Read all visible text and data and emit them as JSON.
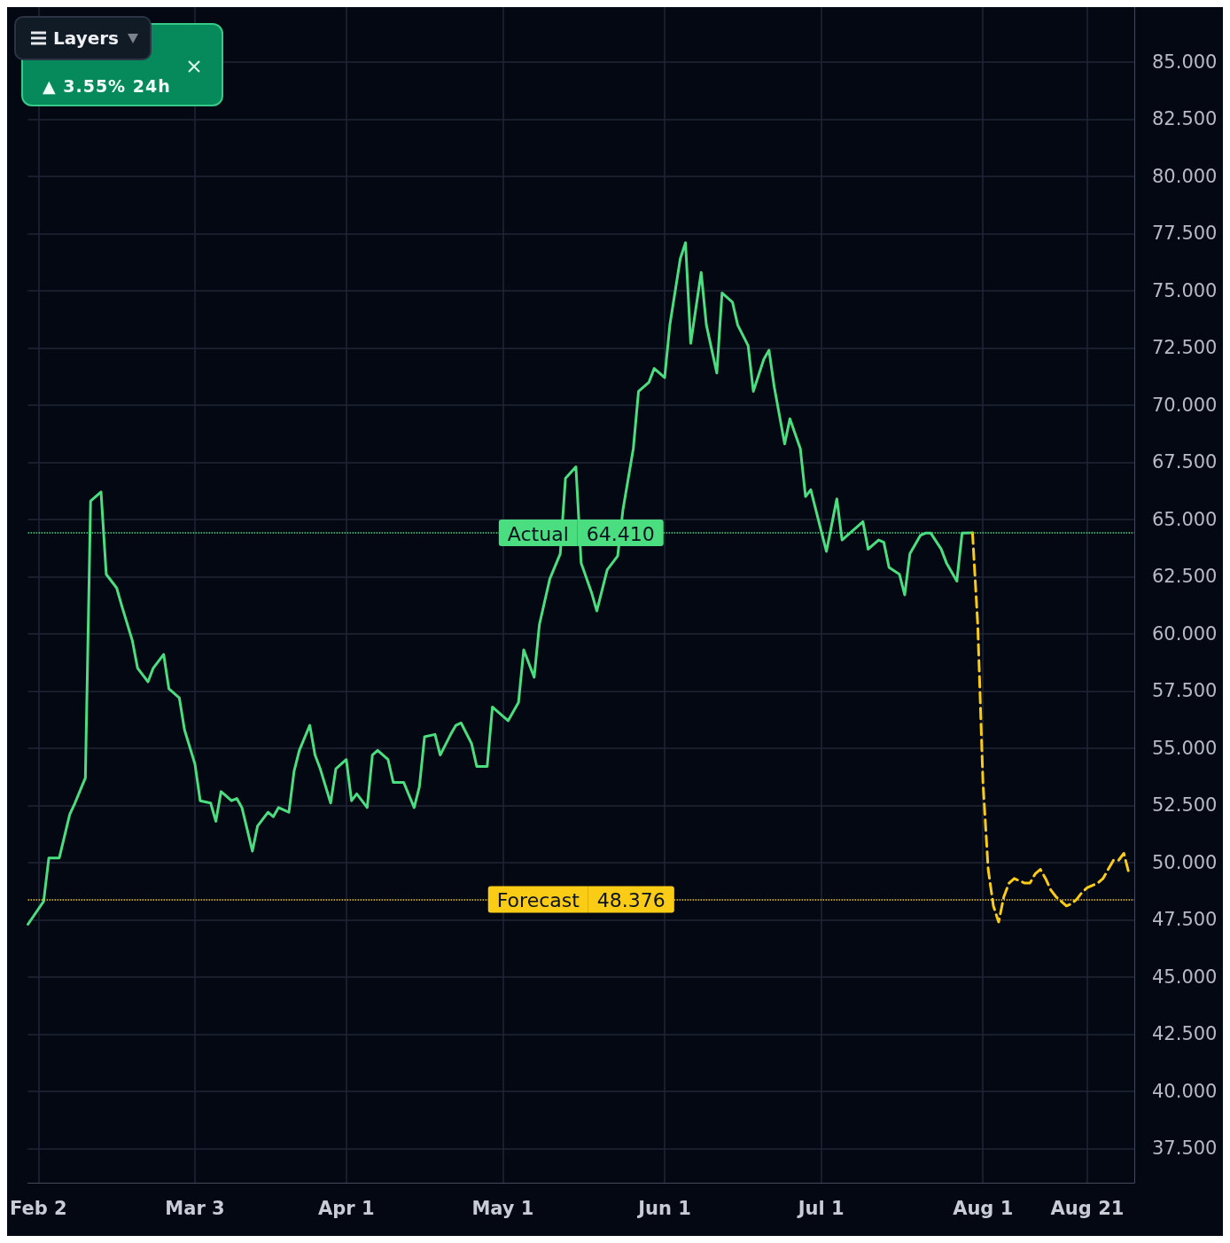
{
  "chart_data": {
    "type": "line",
    "xlim": [
      "--01-31",
      "--08-30"
    ],
    "xticks": [
      {
        "value": "--02-02",
        "label": "Feb 2"
      },
      {
        "value": "--03-03",
        "label": "Mar 3"
      },
      {
        "value": "--04-01",
        "label": "Apr 1"
      },
      {
        "value": "--05-01",
        "label": "May 1"
      },
      {
        "value": "--06-01",
        "label": "Jun 1"
      },
      {
        "value": "--07-01",
        "label": "Jul 1"
      },
      {
        "value": "--08-01",
        "label": "Aug 1"
      },
      {
        "value": "--08-21",
        "label": "Aug 21"
      }
    ],
    "ylim": [
      36,
      87.4
    ],
    "yticks": [
      {
        "value": 37.5,
        "label": "37.500"
      },
      {
        "value": 40,
        "label": "40.000"
      },
      {
        "value": 42.5,
        "label": "42.500"
      },
      {
        "value": 45,
        "label": "45.000"
      },
      {
        "value": 47.5,
        "label": "47.500"
      },
      {
        "value": 50,
        "label": "50.000"
      },
      {
        "value": 52.5,
        "label": "52.500"
      },
      {
        "value": 55,
        "label": "55.000"
      },
      {
        "value": 57.5,
        "label": "57.500"
      },
      {
        "value": 60,
        "label": "60.000"
      },
      {
        "value": 62.5,
        "label": "62.500"
      },
      {
        "value": 65,
        "label": "65.000"
      },
      {
        "value": 67.5,
        "label": "67.500"
      },
      {
        "value": 70,
        "label": "70.000"
      },
      {
        "value": 72.5,
        "label": "72.500"
      },
      {
        "value": 75,
        "label": "75.000"
      },
      {
        "value": 77.5,
        "label": "77.500"
      },
      {
        "value": 80,
        "label": "80.000"
      },
      {
        "value": 82.5,
        "label": "82.500"
      },
      {
        "value": 85,
        "label": "85.000"
      }
    ],
    "grid": true,
    "marker": "none",
    "series": [
      {
        "color": "#4ade80",
        "line_style": "solid",
        "x": [
          "--01-31",
          "--02-03",
          "--02-04",
          "--02-06",
          "--02-08",
          "--02-09",
          "--02-11",
          "--02-12",
          "--02-14",
          "--02-15",
          "--02-17",
          "--02-18",
          "--02-20",
          "--02-21",
          "--02-23",
          "--02-24",
          "--02-26",
          "--02-27",
          "--02-29",
          "--03-01",
          "--03-03",
          "--03-04",
          "--03-06",
          "--03-07",
          "--03-08",
          "--03-10",
          "--03-11",
          "--03-12",
          "--03-14",
          "--03-15",
          "--03-17",
          "--03-18",
          "--03-19",
          "--03-21",
          "--03-22",
          "--03-23",
          "--03-25",
          "--03-26",
          "--03-27",
          "--03-29",
          "--03-30",
          "--04-01",
          "--04-02",
          "--04-03",
          "--04-05",
          "--04-06",
          "--04-07",
          "--04-09",
          "--04-10",
          "--04-12",
          "--04-14",
          "--04-15",
          "--04-16",
          "--04-18",
          "--04-19",
          "--04-21",
          "--04-22",
          "--04-23",
          "--04-25",
          "--04-26",
          "--04-28",
          "--04-29",
          "--04-30",
          "--05-02",
          "--05-04",
          "--05-05",
          "--05-07",
          "--05-08",
          "--05-10",
          "--05-12",
          "--05-13",
          "--05-15",
          "--05-16",
          "--05-18",
          "--05-19",
          "--05-21",
          "--05-23",
          "--05-24",
          "--05-26",
          "--05-27",
          "--05-29",
          "--05-30",
          "--06-01",
          "--06-02",
          "--06-04",
          "--06-05",
          "--06-06",
          "--06-08",
          "--06-09",
          "--06-11",
          "--06-12",
          "--06-14",
          "--06-15",
          "--06-17",
          "--06-18",
          "--06-20",
          "--06-21",
          "--06-22",
          "--06-24",
          "--06-25",
          "--06-27",
          "--06-28",
          "--06-29",
          "--07-01",
          "--07-02",
          "--07-04",
          "--07-05",
          "--07-06",
          "--07-08",
          "--07-09",
          "--07-10",
          "--07-12",
          "--07-13",
          "--07-14",
          "--07-16",
          "--07-17",
          "--07-18",
          "--07-20",
          "--07-21",
          "--07-22",
          "--07-24",
          "--07-25",
          "--07-27",
          "--07-28",
          "--07-30"
        ],
        "values": [
          47.3,
          48.3,
          50.2,
          50.2,
          52.1,
          52.6,
          53.7,
          65.8,
          66.2,
          62.6,
          62.0,
          61.2,
          59.7,
          58.5,
          57.9,
          58.5,
          59.1,
          57.6,
          57.2,
          55.8,
          54.3,
          52.7,
          52.6,
          51.8,
          53.1,
          52.7,
          52.8,
          52.4,
          50.5,
          51.6,
          52.2,
          52.0,
          52.4,
          52.2,
          54.0,
          54.9,
          56.0,
          54.7,
          54.1,
          52.6,
          54.1,
          54.5,
          52.7,
          53.0,
          52.4,
          54.7,
          54.9,
          54.5,
          53.5,
          53.5,
          52.4,
          53.3,
          55.5,
          55.6,
          54.7,
          55.6,
          56.0,
          56.1,
          55.2,
          54.2,
          54.2,
          56.8,
          56.6,
          56.2,
          57.0,
          59.3,
          58.1,
          60.4,
          62.4,
          63.5,
          66.8,
          67.3,
          63.1,
          61.8,
          61.0,
          62.8,
          63.4,
          65.4,
          68.1,
          70.6,
          71.0,
          71.6,
          71.2,
          73.5,
          76.4,
          77.1,
          72.7,
          75.8,
          73.5,
          71.4,
          74.9,
          74.5,
          73.5,
          72.6,
          70.6,
          72.0,
          72.4,
          70.8,
          68.3,
          69.4,
          68.1,
          66.0,
          66.3,
          64.5,
          63.6,
          65.9,
          64.1,
          64.3,
          64.7,
          64.9,
          63.7,
          64.1,
          64.0,
          62.9,
          62.6,
          61.7,
          63.5,
          64.3,
          64.4,
          64.4,
          63.7,
          63.1,
          62.3,
          64.4,
          64.41
        ]
      },
      {
        "color": "#facc15",
        "line_style": "dashed",
        "x": [
          "--07-30",
          "--07-31",
          "--08-01",
          "--08-02",
          "--08-03",
          "--08-04",
          "--08-05",
          "--08-06",
          "--08-07",
          "--08-08",
          "--08-09",
          "--08-10",
          "--08-11",
          "--08-12",
          "--08-13",
          "--08-14",
          "--08-15",
          "--08-16",
          "--08-17",
          "--08-18",
          "--08-19",
          "--08-20",
          "--08-21",
          "--08-22",
          "--08-23",
          "--08-24",
          "--08-25",
          "--08-26",
          "--08-27",
          "--08-28",
          "--08-29"
        ],
        "values": [
          64.41,
          60.4,
          53.5,
          49.7,
          48.1,
          47.4,
          48.5,
          49.1,
          49.3,
          49.2,
          49.1,
          49.1,
          49.5,
          49.7,
          49.3,
          48.8,
          48.5,
          48.3,
          48.1,
          48.2,
          48.4,
          48.7,
          48.9,
          49.0,
          49.1,
          49.3,
          49.7,
          50.1,
          50.1,
          50.4,
          49.5
        ]
      }
    ],
    "ref_lines": [
      {
        "axis": "y",
        "value": 64.41,
        "label": "Actual",
        "color": "#4ade80",
        "line_style": "dotted"
      },
      {
        "axis": "y",
        "value": 48.376,
        "label": "Forecast",
        "color": "#facc15",
        "line_style": "dotted"
      }
    ],
    "annotations": [
      "Layers",
      "▲ 3.55% 24h",
      {
        "text": "64.410",
        "y": 64.41
      },
      {
        "text": "48.376",
        "y": 48.376
      }
    ]
  }
}
